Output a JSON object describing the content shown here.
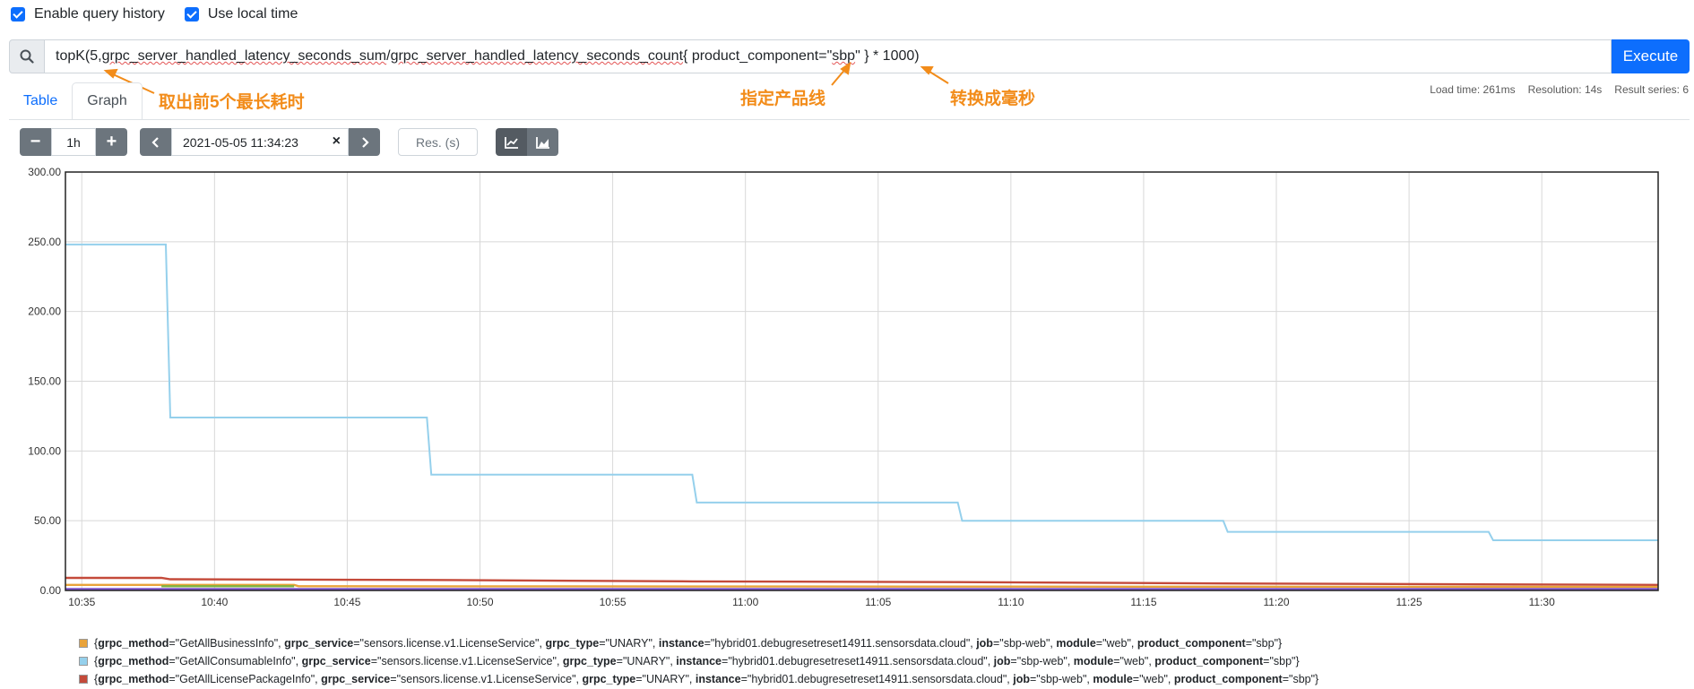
{
  "options": {
    "query_history": "Enable query history",
    "local_time": "Use local time"
  },
  "query": {
    "p1": "topK(5, ",
    "p2": "grpc_server_handled_latency_seconds_sum",
    "p3": " / ",
    "p4": "grpc_server_handled_latency_seconds_count",
    "p5": " { product_component=\"",
    "p6": "sbp",
    "p7": "\" } * 1000)",
    "execute_label": "Execute"
  },
  "annotations": {
    "top5": "取出前5个最长耗时",
    "product_line": "指定产品线",
    "to_ms": "转换成毫秒"
  },
  "tabs": [
    "Table",
    "Graph"
  ],
  "stats": {
    "load_time": "Load time: 261ms",
    "resolution": "Resolution: 14s",
    "result_series": "Result series: 6"
  },
  "controls": {
    "minus": "−",
    "range": "1h",
    "plus": "+",
    "end_time": "2021-05-05 11:34:23",
    "clear": "×",
    "res_placeholder": "Res. (s)"
  },
  "colors": {
    "series_blue": "#95d0ec",
    "series_red": "#c44a3a",
    "series_orange": "#e9a33a",
    "series_purple": "#7b52c9",
    "series_green": "#7cb342",
    "grid": "#d8d8d8",
    "accent": "#0d6efd",
    "annotation": "#f28c1a"
  },
  "chart_data": {
    "type": "line",
    "y_ticks": [
      "300.00",
      "250.00",
      "200.00",
      "150.00",
      "100.00",
      "50.00",
      "0.00"
    ],
    "x_ticks": [
      "10:35",
      "10:40",
      "10:45",
      "10:50",
      "10:55",
      "11:00",
      "11:05",
      "11:10",
      "11:15",
      "11:20",
      "11:25",
      "11:30"
    ],
    "ylim": [
      0,
      300
    ],
    "xlim": [
      "10:34:23",
      "11:34:23"
    ],
    "grid": true,
    "series": [
      {
        "color": "#95d0ec",
        "points": [
          [
            "10:34:23",
            248
          ],
          [
            "10:38:10",
            248
          ],
          [
            "10:38:20",
            124
          ],
          [
            "10:48:00",
            124
          ],
          [
            "10:48:10",
            83
          ],
          [
            "10:58:00",
            83
          ],
          [
            "10:58:10",
            63
          ],
          [
            "11:08:00",
            63
          ],
          [
            "11:08:10",
            50
          ],
          [
            "11:18:00",
            50
          ],
          [
            "11:18:10",
            42
          ],
          [
            "11:28:00",
            42
          ],
          [
            "11:28:10",
            36
          ],
          [
            "11:34:23",
            36
          ]
        ]
      },
      {
        "color": "#c44a3a",
        "points": [
          [
            "10:34:23",
            9
          ],
          [
            "10:38:00",
            9
          ],
          [
            "10:38:20",
            8
          ],
          [
            "10:48:00",
            7.5
          ],
          [
            "10:58:00",
            6.5
          ],
          [
            "11:08:00",
            6
          ],
          [
            "11:18:00",
            5
          ],
          [
            "11:34:23",
            4
          ]
        ]
      },
      {
        "color": "#e9a33a",
        "points": [
          [
            "10:34:23",
            4
          ],
          [
            "10:43:00",
            4
          ],
          [
            "10:43:10",
            3
          ],
          [
            "11:34:23",
            2.5
          ]
        ]
      },
      {
        "color": "#7cb342",
        "points": [
          [
            "10:38:00",
            3
          ],
          [
            "10:43:00",
            3
          ]
        ]
      },
      {
        "color": "#7b52c9",
        "points": [
          [
            "10:34:23",
            1
          ],
          [
            "11:34:23",
            1
          ]
        ]
      }
    ],
    "legend": [
      {
        "color": "#e9a33a",
        "grpc_method": "GetAllBusinessInfo",
        "grpc_service": "sensors.license.v1.LicenseService",
        "grpc_type": "UNARY",
        "instance": "hybrid01.debugresetreset14911.sensorsdata.cloud",
        "job": "sbp-web",
        "module": "web",
        "product_component": "sbp"
      },
      {
        "color": "#95d0ec",
        "grpc_method": "GetAllConsumableInfo",
        "grpc_service": "sensors.license.v1.LicenseService",
        "grpc_type": "UNARY",
        "instance": "hybrid01.debugresetreset14911.sensorsdata.cloud",
        "job": "sbp-web",
        "module": "web",
        "product_component": "sbp"
      },
      {
        "color": "#c44a3a",
        "grpc_method": "GetAllLicensePackageInfo",
        "grpc_service": "sensors.license.v1.LicenseService",
        "grpc_type": "UNARY",
        "instance": "hybrid01.debugresetreset14911.sensorsdata.cloud",
        "job": "sbp-web",
        "module": "web",
        "product_component": "sbp"
      }
    ]
  }
}
